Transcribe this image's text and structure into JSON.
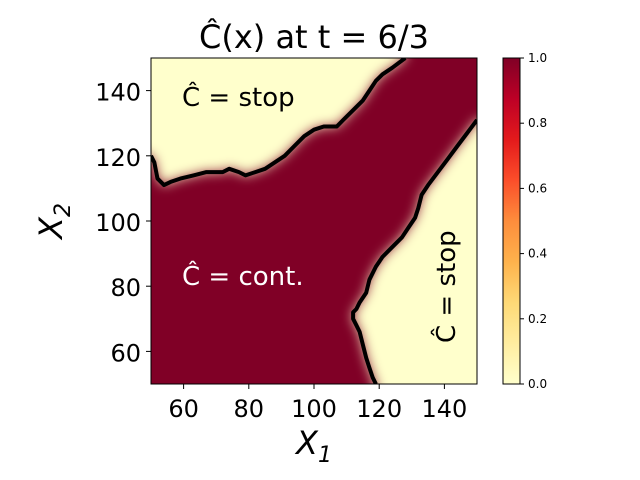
{
  "chart_data": {
    "type": "heatmap",
    "title": "Ĉ(x) at t = 6/3",
    "xlabel": "X1",
    "ylabel": "X2",
    "xlim": [
      50,
      150
    ],
    "ylim": [
      50,
      150
    ],
    "x_ticks": [
      "60",
      "80",
      "100",
      "120",
      "140"
    ],
    "y_ticks": [
      "60",
      "80",
      "100",
      "120",
      "140"
    ],
    "colorbar": {
      "colormap": "YlOrRd",
      "range": [
        0.0,
        1.0
      ],
      "ticks": [
        "0.0",
        "0.2",
        "0.4",
        "0.6",
        "0.8",
        "1.0"
      ]
    },
    "annotations": [
      "Ĉ = stop",
      "Ĉ = cont.",
      "Ĉ = stop"
    ],
    "boundaries": [
      {
        "region": "upper-left stop",
        "points": [
          [
            50,
            120
          ],
          [
            51,
            118
          ],
          [
            52,
            113
          ],
          [
            54,
            111
          ],
          [
            56,
            112
          ],
          [
            59,
            113
          ],
          [
            63,
            114
          ],
          [
            67,
            115
          ],
          [
            72,
            115
          ],
          [
            74,
            116
          ],
          [
            77,
            115
          ],
          [
            79,
            114
          ],
          [
            82,
            115
          ],
          [
            85,
            116
          ],
          [
            88,
            118
          ],
          [
            91,
            120
          ],
          [
            94,
            123
          ],
          [
            97,
            126
          ],
          [
            100,
            128
          ],
          [
            103,
            129
          ],
          [
            107,
            129
          ],
          [
            109,
            131
          ],
          [
            112,
            134
          ],
          [
            115,
            137
          ],
          [
            117,
            140
          ],
          [
            119,
            143
          ],
          [
            121,
            145
          ],
          [
            124,
            147
          ],
          [
            128,
            150
          ]
        ]
      },
      {
        "region": "lower-right stop",
        "points": [
          [
            150,
            131
          ],
          [
            147,
            127
          ],
          [
            144,
            123
          ],
          [
            141,
            119
          ],
          [
            138,
            115
          ],
          [
            135,
            111
          ],
          [
            133,
            108
          ],
          [
            132,
            104
          ],
          [
            131,
            101
          ],
          [
            129,
            98
          ],
          [
            127,
            95
          ],
          [
            125,
            93
          ],
          [
            123,
            91
          ],
          [
            121,
            89
          ],
          [
            119,
            86
          ],
          [
            117,
            82
          ],
          [
            116,
            78
          ],
          [
            114,
            75
          ],
          [
            113,
            73
          ],
          [
            112,
            72
          ],
          [
            112,
            70
          ],
          [
            113,
            68
          ],
          [
            114,
            66
          ],
          [
            115,
            62
          ],
          [
            116,
            58
          ],
          [
            117,
            55
          ],
          [
            118,
            52
          ],
          [
            119,
            50
          ]
        ]
      }
    ]
  }
}
